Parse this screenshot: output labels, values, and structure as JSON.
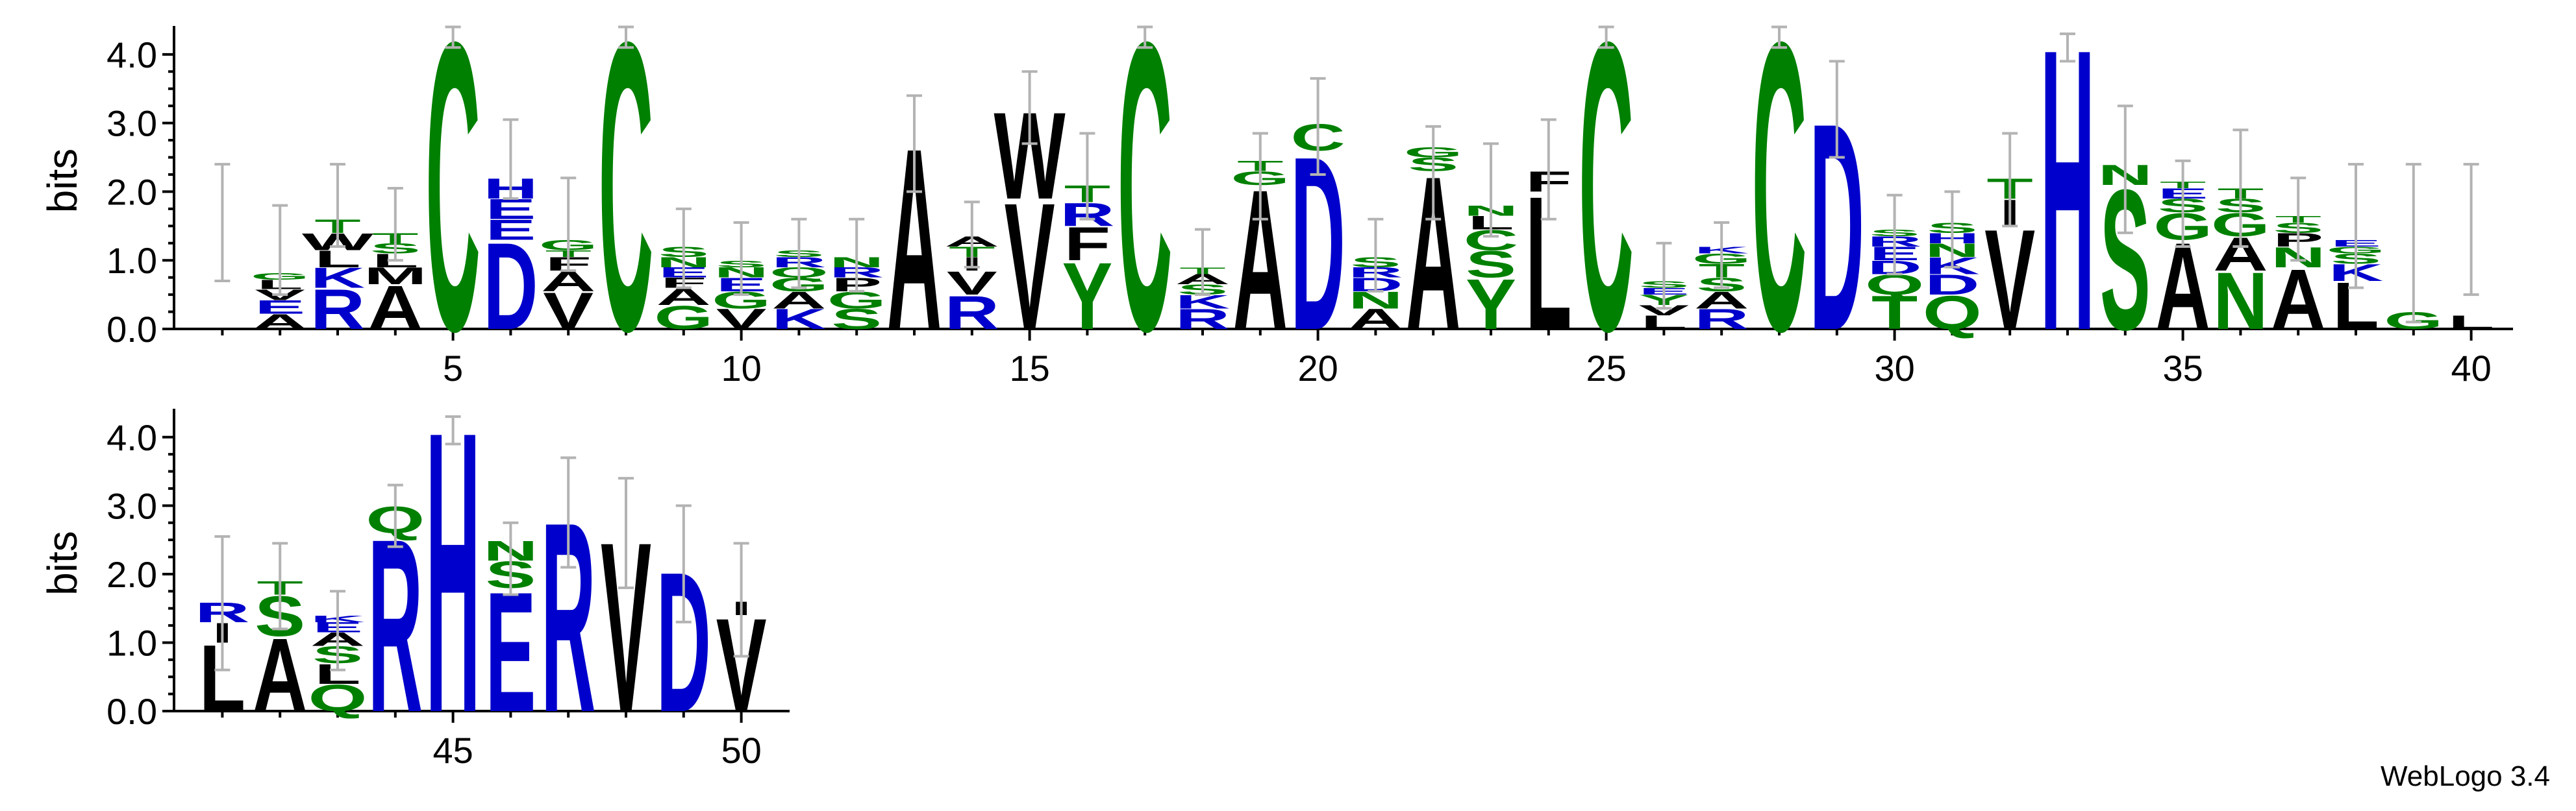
{
  "credit": "WebLogo 3.4",
  "chart_data": {
    "type": "sequence-logo",
    "ylabel": "bits",
    "ylim": [
      0,
      4.32
    ],
    "yticks": [
      "0.0",
      "1.0",
      "2.0",
      "3.0",
      "4.0"
    ],
    "xticks_shown": [
      5,
      10,
      15,
      20,
      25,
      30,
      35,
      40,
      45,
      50
    ],
    "colors": {
      "acidic": "#0000cc",
      "basic": "#0000cc",
      "polar": "#008000",
      "hydrophobic": "#000000"
    },
    "positions": [
      {
        "pos": 1,
        "stack": [],
        "err": [
          0.7,
          2.4
        ]
      },
      {
        "pos": 2,
        "stack": [
          [
            "A",
            0.22
          ],
          [
            "E",
            0.2
          ],
          [
            "V",
            0.16
          ],
          [
            "L",
            0.14
          ],
          [
            "G",
            0.1
          ]
        ],
        "err": [
          0.5,
          1.8
        ]
      },
      {
        "pos": 3,
        "stack": [
          [
            "R",
            0.6
          ],
          [
            "K",
            0.3
          ],
          [
            "L",
            0.25
          ],
          [
            "W",
            0.25
          ],
          [
            "T",
            0.2
          ]
        ],
        "err": [
          1.2,
          2.4
        ]
      },
      {
        "pos": 4,
        "stack": [
          [
            "A",
            0.65
          ],
          [
            "M",
            0.25
          ],
          [
            "L",
            0.2
          ],
          [
            "S",
            0.15
          ],
          [
            "T",
            0.15
          ]
        ],
        "err": [
          1.0,
          2.05
        ]
      },
      {
        "pos": 5,
        "stack": [
          [
            "C",
            4.32
          ]
        ],
        "err": [
          4.1,
          4.4
        ]
      },
      {
        "pos": 6,
        "stack": [
          [
            "D",
            1.3
          ],
          [
            "E",
            0.3
          ],
          [
            "E",
            0.3
          ],
          [
            "H",
            0.3
          ]
        ],
        "err": [
          1.9,
          3.05
        ]
      },
      {
        "pos": 7,
        "stack": [
          [
            "V",
            0.55
          ],
          [
            "A",
            0.3
          ],
          [
            "F",
            0.2
          ],
          [
            "T",
            0.1
          ],
          [
            "G",
            0.15
          ]
        ],
        "err": [
          0.85,
          2.2
        ]
      },
      {
        "pos": 8,
        "stack": [
          [
            "C",
            4.32
          ]
        ],
        "err": [
          4.1,
          4.4
        ]
      },
      {
        "pos": 9,
        "stack": [
          [
            "G",
            0.35
          ],
          [
            "A",
            0.25
          ],
          [
            "F",
            0.15
          ],
          [
            "E",
            0.15
          ],
          [
            "N",
            0.15
          ],
          [
            "S",
            0.15
          ]
        ],
        "err": [
          0.6,
          1.75
        ]
      },
      {
        "pos": 10,
        "stack": [
          [
            "V",
            0.3
          ],
          [
            "G",
            0.25
          ],
          [
            "E",
            0.2
          ],
          [
            "N",
            0.15
          ],
          [
            "S",
            0.1
          ]
        ],
        "err": [
          0.5,
          1.55
        ]
      },
      {
        "pos": 11,
        "stack": [
          [
            "K",
            0.3
          ],
          [
            "A",
            0.25
          ],
          [
            "G",
            0.2
          ],
          [
            "Q",
            0.15
          ],
          [
            "R",
            0.15
          ],
          [
            "S",
            0.1
          ]
        ],
        "err": [
          0.6,
          1.6
        ]
      },
      {
        "pos": 12,
        "stack": [
          [
            "S",
            0.3
          ],
          [
            "G",
            0.25
          ],
          [
            "P",
            0.2
          ],
          [
            "R",
            0.15
          ],
          [
            "N",
            0.15
          ]
        ],
        "err": [
          0.55,
          1.6
        ]
      },
      {
        "pos": 13,
        "stack": [
          [
            "A",
            2.72
          ]
        ],
        "err": [
          2.0,
          3.4
        ]
      },
      {
        "pos": 14,
        "stack": [
          [
            "R",
            0.5
          ],
          [
            "V",
            0.35
          ],
          [
            "I",
            0.2
          ],
          [
            "T",
            0.15
          ],
          [
            "A",
            0.15
          ]
        ],
        "err": [
          0.9,
          1.85
        ]
      },
      {
        "pos": 15,
        "stack": [
          [
            "V",
            1.9
          ],
          [
            "W",
            1.3
          ]
        ],
        "err": [
          2.7,
          3.75
        ]
      },
      {
        "pos": 16,
        "stack": [
          [
            "Y",
            1.0
          ],
          [
            "F",
            0.5
          ],
          [
            "R",
            0.35
          ],
          [
            "T",
            0.25
          ]
        ],
        "err": [
          1.6,
          2.85
        ]
      },
      {
        "pos": 17,
        "stack": [
          [
            "C",
            4.32
          ]
        ],
        "err": [
          4.1,
          4.4
        ]
      },
      {
        "pos": 18,
        "stack": [
          [
            "R",
            0.3
          ],
          [
            "K",
            0.2
          ],
          [
            "S",
            0.15
          ],
          [
            "A",
            0.15
          ],
          [
            "T",
            0.1
          ]
        ],
        "err": [
          0.5,
          1.45
        ]
      },
      {
        "pos": 19,
        "stack": [
          [
            "A",
            2.1
          ],
          [
            "G",
            0.2
          ],
          [
            "T",
            0.15
          ]
        ],
        "err": [
          1.6,
          2.85
        ]
      },
      {
        "pos": 20,
        "stack": [
          [
            "D",
            2.6
          ],
          [
            "C",
            0.4
          ]
        ],
        "err": [
          2.25,
          3.65
        ]
      },
      {
        "pos": 21,
        "stack": [
          [
            "A",
            0.3
          ],
          [
            "N",
            0.25
          ],
          [
            "D",
            0.2
          ],
          [
            "R",
            0.15
          ],
          [
            "S",
            0.15
          ]
        ],
        "err": [
          0.55,
          1.6
        ]
      },
      {
        "pos": 22,
        "stack": [
          [
            "A",
            2.3
          ],
          [
            "S",
            0.2
          ],
          [
            "G",
            0.15
          ]
        ],
        "err": [
          1.6,
          2.95
        ]
      },
      {
        "pos": 23,
        "stack": [
          [
            "Y",
            0.75
          ],
          [
            "S",
            0.4
          ],
          [
            "C",
            0.3
          ],
          [
            "L",
            0.2
          ],
          [
            "N",
            0.15
          ]
        ],
        "err": [
          1.35,
          2.7
        ]
      },
      {
        "pos": 24,
        "stack": [
          [
            "L",
            2.0
          ],
          [
            "F",
            0.3
          ]
        ],
        "err": [
          1.6,
          3.05
        ]
      },
      {
        "pos": 25,
        "stack": [
          [
            "C",
            4.32
          ]
        ],
        "err": [
          4.1,
          4.4
        ]
      },
      {
        "pos": 26,
        "stack": [
          [
            "L",
            0.2
          ],
          [
            "V",
            0.15
          ],
          [
            "Y",
            0.15
          ],
          [
            "E",
            0.1
          ],
          [
            "S",
            0.1
          ]
        ],
        "err": [
          0.3,
          1.25
        ]
      },
      {
        "pos": 27,
        "stack": [
          [
            "R",
            0.3
          ],
          [
            "A",
            0.25
          ],
          [
            "S",
            0.2
          ],
          [
            "T",
            0.2
          ],
          [
            "G",
            0.15
          ],
          [
            "K",
            0.1
          ]
        ],
        "err": [
          0.6,
          1.55
        ]
      },
      {
        "pos": 28,
        "stack": [
          [
            "C",
            4.32
          ]
        ],
        "err": [
          4.1,
          4.4
        ]
      },
      {
        "pos": 29,
        "stack": [
          [
            "D",
            3.1
          ]
        ],
        "err": [
          2.5,
          3.9
        ]
      },
      {
        "pos": 30,
        "stack": [
          [
            "T",
            0.5
          ],
          [
            "Q",
            0.3
          ],
          [
            "D",
            0.2
          ],
          [
            "E",
            0.2
          ],
          [
            "R",
            0.15
          ],
          [
            "S",
            0.1
          ]
        ],
        "err": [
          0.8,
          1.95
        ]
      },
      {
        "pos": 31,
        "stack": [
          [
            "Q",
            0.5
          ],
          [
            "D",
            0.3
          ],
          [
            "K",
            0.25
          ],
          [
            "N",
            0.2
          ],
          [
            "H",
            0.15
          ],
          [
            "S",
            0.15
          ]
        ],
        "err": [
          0.9,
          2.0
        ]
      },
      {
        "pos": 32,
        "stack": [
          [
            "V",
            1.5
          ],
          [
            "I",
            0.4
          ],
          [
            "T",
            0.3
          ]
        ],
        "err": [
          1.5,
          2.85
        ]
      },
      {
        "pos": 33,
        "stack": [
          [
            "H",
            4.22
          ]
        ],
        "err": [
          3.9,
          4.3
        ]
      },
      {
        "pos": 34,
        "stack": [
          [
            "S",
            2.1
          ],
          [
            "N",
            0.3
          ]
        ],
        "err": [
          1.4,
          3.25
        ]
      },
      {
        "pos": 35,
        "stack": [
          [
            "A",
            1.3
          ],
          [
            "G",
            0.4
          ],
          [
            "S",
            0.2
          ],
          [
            "E",
            0.15
          ],
          [
            "T",
            0.1
          ]
        ],
        "err": [
          1.2,
          2.45
        ]
      },
      {
        "pos": 36,
        "stack": [
          [
            "N",
            0.85
          ],
          [
            "A",
            0.5
          ],
          [
            "G",
            0.35
          ],
          [
            "S",
            0.2
          ],
          [
            "T",
            0.15
          ]
        ],
        "err": [
          1.2,
          2.9
        ]
      },
      {
        "pos": 37,
        "stack": [
          [
            "A",
            0.9
          ],
          [
            "N",
            0.3
          ],
          [
            "P",
            0.2
          ],
          [
            "S",
            0.15
          ],
          [
            "T",
            0.1
          ]
        ],
        "err": [
          1.0,
          2.2
        ]
      },
      {
        "pos": 38,
        "stack": [
          [
            "L",
            0.7
          ],
          [
            "K",
            0.25
          ],
          [
            "S",
            0.15
          ],
          [
            "G",
            0.1
          ],
          [
            "E",
            0.1
          ]
        ],
        "err": [
          0.6,
          2.4
        ]
      },
      {
        "pos": 39,
        "stack": [
          [
            "G",
            0.25
          ]
        ],
        "err": [
          0.1,
          2.4
        ]
      },
      {
        "pos": 40,
        "stack": [
          [
            "L",
            0.2
          ]
        ],
        "err": [
          0.5,
          2.4
        ]
      },
      {
        "pos": 41,
        "stack": [
          [
            "L",
            1.0
          ],
          [
            "I",
            0.3
          ],
          [
            "R",
            0.3
          ]
        ],
        "err": [
          0.6,
          2.55
        ]
      },
      {
        "pos": 42,
        "stack": [
          [
            "A",
            1.1
          ],
          [
            "S",
            0.6
          ],
          [
            "T",
            0.2
          ]
        ],
        "err": [
          1.2,
          2.45
        ]
      },
      {
        "pos": 43,
        "stack": [
          [
            "Q",
            0.4
          ],
          [
            "L",
            0.3
          ],
          [
            "S",
            0.25
          ],
          [
            "A",
            0.2
          ],
          [
            "E",
            0.15
          ],
          [
            "K",
            0.1
          ]
        ],
        "err": [
          0.6,
          1.75
        ]
      },
      {
        "pos": 44,
        "stack": [
          [
            "R",
            2.6
          ],
          [
            "Q",
            0.4
          ]
        ],
        "err": [
          2.4,
          3.3
        ]
      },
      {
        "pos": 45,
        "stack": [
          [
            "H",
            4.22
          ]
        ],
        "err": [
          3.9,
          4.3
        ]
      },
      {
        "pos": 46,
        "stack": [
          [
            "E",
            1.8
          ],
          [
            "S",
            0.4
          ],
          [
            "N",
            0.3
          ]
        ],
        "err": [
          1.7,
          2.75
        ]
      },
      {
        "pos": 47,
        "stack": [
          [
            "R",
            2.85
          ]
        ],
        "err": [
          2.1,
          3.7
        ]
      },
      {
        "pos": 48,
        "stack": [
          [
            "V",
            2.55
          ]
        ],
        "err": [
          1.8,
          3.4
        ]
      },
      {
        "pos": 49,
        "stack": [
          [
            "D",
            2.1
          ]
        ],
        "err": [
          1.3,
          3.0
        ]
      },
      {
        "pos": 50,
        "stack": [
          [
            "V",
            1.4
          ],
          [
            "I",
            0.2
          ]
        ],
        "err": [
          0.8,
          2.45
        ]
      }
    ]
  }
}
